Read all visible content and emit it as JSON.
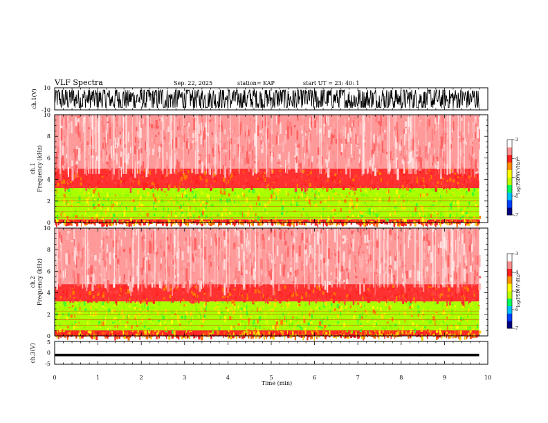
{
  "header": {
    "title": "VLF Spectra",
    "date": "Sep. 22, 2025",
    "station": "station= KAP",
    "start": "start  UT  =   23: 40: 1"
  },
  "chart_data": [
    {
      "type": "line",
      "name": "ch1-waveform",
      "ylabel": "ch.1(V)",
      "ylim": [
        -10,
        10
      ],
      "yticks": [
        "10",
        "-10"
      ],
      "xlim": [
        0,
        10
      ],
      "signal": "noisy voltage trace roughly between -8 and 8 V, spanning 0 to 9.8 min"
    },
    {
      "type": "heatmap",
      "name": "ch1-spectrogram",
      "ylabel": "ch.1\nFrequency (kHz)",
      "ylabel_top": "ch.1",
      "ylabel_bottom": "Frequency  (kHz)",
      "ylim": [
        0,
        10
      ],
      "yticks": [
        "0",
        "2",
        "4",
        "6",
        "8",
        "10"
      ],
      "xlim": [
        0,
        9.8
      ],
      "bands": [
        {
          "from": 0,
          "to": 0.3,
          "level": "strong"
        },
        {
          "from": 0.3,
          "to": 3.2,
          "level": "green"
        },
        {
          "from": 3.2,
          "to": 5.0,
          "level": "red"
        },
        {
          "from": 5.0,
          "to": 10,
          "level": "faint"
        }
      ],
      "colorbar": {
        "label": "log(PSD)(V²/Hz)",
        "ticks": [
          "-3",
          "-4",
          "-5",
          "-6",
          "-7"
        ],
        "range": [
          -7,
          -3
        ],
        "colors": [
          "#000080",
          "#0040ff",
          "#00c0ff",
          "#00ff60",
          "#c0ff00",
          "#ffff00",
          "#ff9000",
          "#ff2020",
          "#ff9090",
          "#ffffff"
        ]
      }
    },
    {
      "type": "heatmap",
      "name": "ch2-spectrogram",
      "ylabel": "ch.2\nFrequency (kHz)",
      "ylabel_top": "ch.2",
      "ylabel_bottom": "Frequency  (kHz)",
      "ylim": [
        0,
        10
      ],
      "yticks": [
        "0",
        "2",
        "4",
        "6",
        "8",
        "10"
      ],
      "xlim": [
        0,
        9.8
      ],
      "bands": [
        {
          "from": 0,
          "to": 0.5,
          "level": "strong"
        },
        {
          "from": 0.5,
          "to": 3.2,
          "level": "green"
        },
        {
          "from": 3.2,
          "to": 4.8,
          "level": "red"
        },
        {
          "from": 4.8,
          "to": 10,
          "level": "faint"
        }
      ],
      "colorbar": {
        "label": "log(PSD)(V²/Hz)",
        "ticks": [
          "-3",
          "-4",
          "-5",
          "-6",
          "-7"
        ],
        "range": [
          -7,
          -3
        ],
        "colors": [
          "#000080",
          "#0040ff",
          "#00c0ff",
          "#00ff60",
          "#c0ff00",
          "#ffff00",
          "#ff9000",
          "#ff2020",
          "#ff9090",
          "#ffffff"
        ]
      }
    },
    {
      "type": "line",
      "name": "ch3-waveform",
      "ylabel": "ch.3(V)",
      "ylim": [
        -5,
        5
      ],
      "yticks": [
        "5",
        "0",
        "-5"
      ],
      "xlim": [
        0,
        10
      ],
      "signal": "flat trace near -1 V spanning 0 to 9.8 min"
    }
  ],
  "xaxis": {
    "label": "Time  (min)",
    "ticks": [
      "0",
      "1",
      "2",
      "3",
      "4",
      "5",
      "6",
      "7",
      "8",
      "9",
      "10"
    ],
    "range": [
      0,
      10
    ]
  }
}
